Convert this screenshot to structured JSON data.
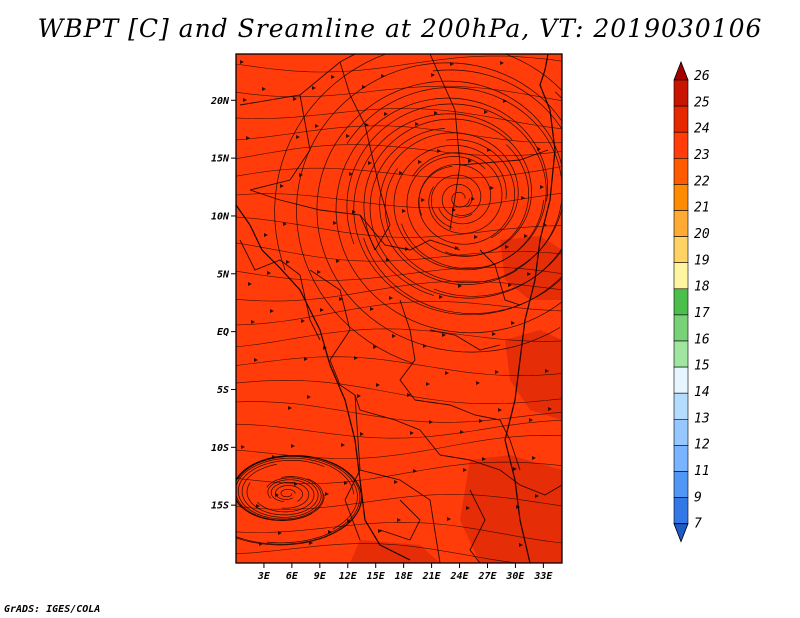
{
  "title": "WBPT [C] and Sreamline at 200hPa, VT: 2019030106",
  "credit": "GrADS: IGES/COLA",
  "map": {
    "variable": "WBPT [C]",
    "level": "200hPa",
    "valid_time": "2019030106",
    "lon_range": [
      0,
      35
    ],
    "lat_range": [
      -20,
      24
    ],
    "base_fill_color": "#ff3c0a",
    "darker_fill_color": "#e02a08",
    "x_tick_labels": [
      "3E",
      "6E",
      "9E",
      "12E",
      "15E",
      "18E",
      "21E",
      "24E",
      "27E",
      "30E",
      "33E"
    ],
    "x_tick_values": [
      3,
      6,
      9,
      12,
      15,
      18,
      21,
      24,
      27,
      30,
      33
    ],
    "y_tick_labels": [
      "20N",
      "15N",
      "10N",
      "5N",
      "EQ",
      "5S",
      "10S",
      "15S"
    ],
    "y_tick_values": [
      20,
      15,
      10,
      5,
      0,
      -5,
      -10,
      -15
    ],
    "circulations": [
      {
        "name": "anticyclone-north",
        "lon": 24,
        "lat": 11.5
      },
      {
        "name": "anticyclone-south",
        "lon": 5.5,
        "lat": -14
      }
    ]
  },
  "colorbar": {
    "labels": [
      "26",
      "25",
      "24",
      "23",
      "22",
      "21",
      "20",
      "19",
      "18",
      "17",
      "16",
      "15",
      "14",
      "13",
      "12",
      "11",
      "9",
      "7"
    ],
    "colors": [
      "#a50000",
      "#c81400",
      "#e62800",
      "#ff3c0a",
      "#ff5a00",
      "#ff8c00",
      "#ffaa32",
      "#ffd264",
      "#fff5a0",
      "#4bbe4b",
      "#78d278",
      "#a0e6a0",
      "#e6f5ff",
      "#b4dcff",
      "#96c8ff",
      "#78b4ff",
      "#5096f5",
      "#3278e6",
      "#1e5ac8"
    ]
  }
}
